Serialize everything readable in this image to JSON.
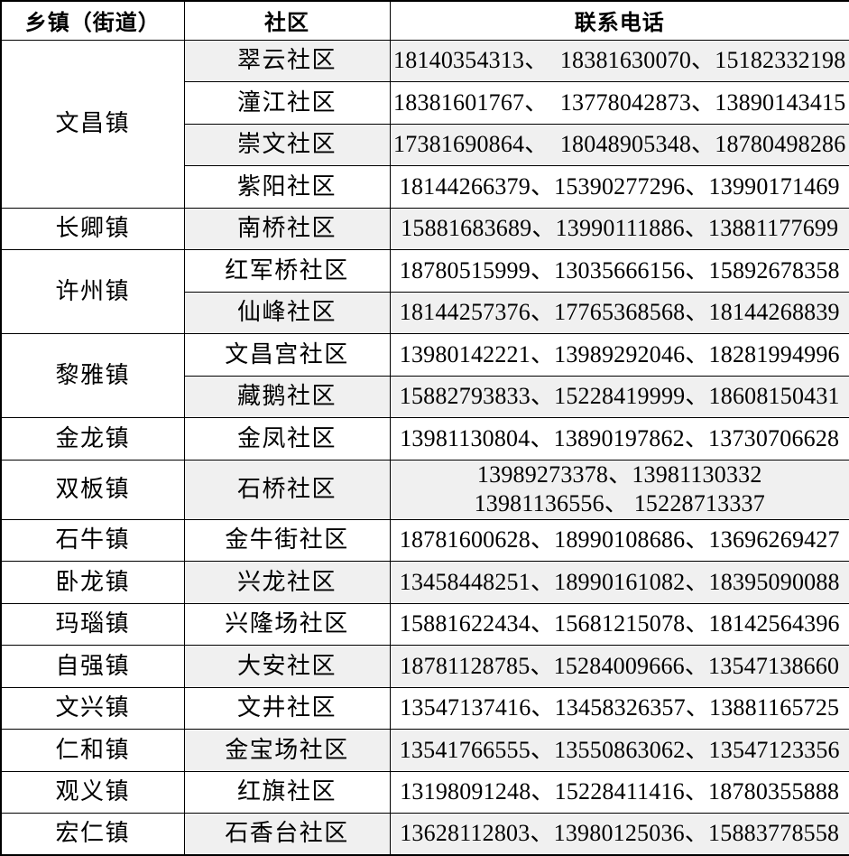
{
  "colors": {
    "row_shade": "#f0f0f0",
    "border": "#000000",
    "text": "#000000",
    "background": "#ffffff"
  },
  "table": {
    "headers": [
      "乡镇（街道）",
      "社区",
      "联系电话"
    ],
    "groups": [
      {
        "town": "文昌镇",
        "rows": [
          {
            "community": "翠云社区",
            "phones": "18140354313、  18381630070、15182332198"
          },
          {
            "community": "潼江社区",
            "phones": "18381601767、  13778042873、13890143415"
          },
          {
            "community": "崇文社区",
            "phones": "17381690864、  18048905348、18780498286"
          },
          {
            "community": "紫阳社区",
            "phones": "18144266379、15390277296、13990171469"
          }
        ]
      },
      {
        "town": "长卿镇",
        "rows": [
          {
            "community": "南桥社区",
            "phones": "15881683689、13990111886、13881177699"
          }
        ]
      },
      {
        "town": "许州镇",
        "rows": [
          {
            "community": "红军桥社区",
            "phones": "18780515999、13035666156、15892678358"
          },
          {
            "community": "仙峰社区",
            "phones": "18144257376、17765368568、18144268839"
          }
        ]
      },
      {
        "town": "黎雅镇",
        "rows": [
          {
            "community": "文昌宫社区",
            "phones": "13980142221、13989292046、18281994996"
          },
          {
            "community": "藏鹅社区",
            "phones": "15882793833、15228419999、18608150431"
          }
        ]
      },
      {
        "town": "金龙镇",
        "rows": [
          {
            "community": "金凤社区",
            "phones": "13981130804、13890197862、13730706628"
          }
        ]
      },
      {
        "town": "双板镇",
        "rows": [
          {
            "community": "石桥社区",
            "phones": "13989273378、13981130332\n13981136556、 15228713337",
            "tall": true
          }
        ]
      },
      {
        "town": "石牛镇",
        "rows": [
          {
            "community": "金牛街社区",
            "phones": "18781600628、18990108686、13696269427"
          }
        ]
      },
      {
        "town": "卧龙镇",
        "rows": [
          {
            "community": "兴龙社区",
            "phones": "13458448251、18990161082、18395090088"
          }
        ]
      },
      {
        "town": "玛瑙镇",
        "rows": [
          {
            "community": "兴隆场社区",
            "phones": "15881622434、15681215078、18142564396"
          }
        ]
      },
      {
        "town": "自强镇",
        "rows": [
          {
            "community": "大安社区",
            "phones": "18781128785、15284009666、13547138660"
          }
        ]
      },
      {
        "town": "文兴镇",
        "rows": [
          {
            "community": "文井社区",
            "phones": "13547137416、13458326357、13881165725"
          }
        ]
      },
      {
        "town": "仁和镇",
        "rows": [
          {
            "community": "金宝场社区",
            "phones": "13541766555、13550863062、13547123356"
          }
        ]
      },
      {
        "town": "观义镇",
        "rows": [
          {
            "community": "红旗社区",
            "phones": "13198091248、15228411416、18780355888"
          }
        ]
      },
      {
        "town": "宏仁镇",
        "rows": [
          {
            "community": "石香台社区",
            "phones": "13628112803、13980125036、15883778558"
          }
        ]
      }
    ]
  }
}
